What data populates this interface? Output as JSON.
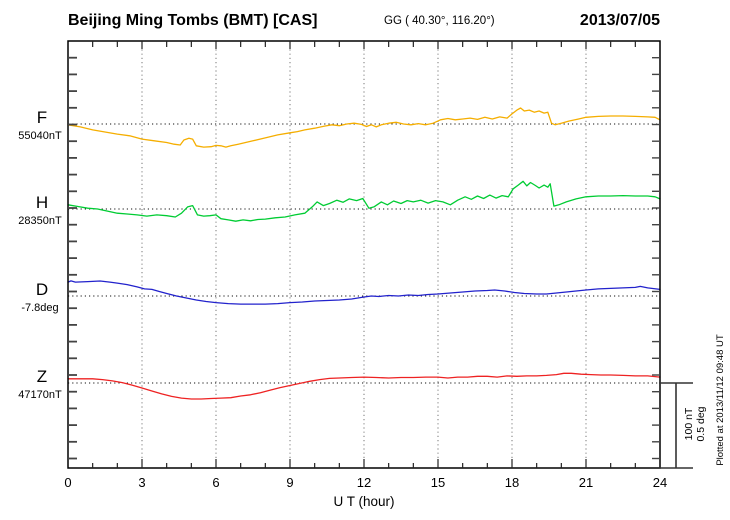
{
  "header": {
    "title": "Beijing Ming Tombs (BMT)  [CAS]",
    "geo": "GG ( 40.30°, 116.20°)",
    "date": "2013/07/05"
  },
  "side_note": {
    "text": "Plotted at 2013/11/12 09:48 UT"
  },
  "scale_bar": {
    "line1": "100 nT",
    "line2": "0.5 deg"
  },
  "chart_data": {
    "type": "line",
    "title": "Beijing Ming Tombs (BMT) magnetogram 2013/07/05",
    "x_label": "U T (hour)",
    "x_range": [
      0,
      24
    ],
    "x_ticks": [
      0,
      3,
      6,
      9,
      12,
      15,
      18,
      21,
      24
    ],
    "x_grid": [
      3,
      6,
      9,
      12,
      15,
      18,
      21
    ],
    "grid": "dotted",
    "scale_note": "scale bar = 100 nT for F/H/Z, 0.5 deg for D",
    "series": [
      {
        "name": "F",
        "value_label": "55040nT",
        "baseline_value": 55040,
        "unit": "nT",
        "color": "#F5AE00",
        "points": [
          [
            0,
            -1
          ],
          [
            0.5,
            -3.5
          ],
          [
            1,
            -7
          ],
          [
            1.5,
            -9.5
          ],
          [
            2,
            -12
          ],
          [
            2.5,
            -14
          ],
          [
            3,
            -18
          ],
          [
            3.5,
            -20
          ],
          [
            4,
            -22
          ],
          [
            4.3,
            -24
          ],
          [
            4.55,
            -25
          ],
          [
            4.7,
            -19
          ],
          [
            4.9,
            -17
          ],
          [
            5.05,
            -18
          ],
          [
            5.2,
            -26
          ],
          [
            5.5,
            -27.5
          ],
          [
            5.8,
            -27
          ],
          [
            6,
            -25.5
          ],
          [
            6.2,
            -26
          ],
          [
            6.4,
            -27.5
          ],
          [
            6.6,
            -26
          ],
          [
            6.9,
            -24
          ],
          [
            7.2,
            -22
          ],
          [
            7.5,
            -20
          ],
          [
            8,
            -16.5
          ],
          [
            8.5,
            -13
          ],
          [
            9,
            -10.5
          ],
          [
            9.3,
            -9
          ],
          [
            9.6,
            -7
          ],
          [
            10,
            -5
          ],
          [
            10.4,
            -2.5
          ],
          [
            10.7,
            -1
          ],
          [
            11,
            -2
          ],
          [
            11.3,
            0
          ],
          [
            11.6,
            1
          ],
          [
            11.9,
            -0.5
          ],
          [
            12.1,
            -3
          ],
          [
            12.3,
            -1
          ],
          [
            12.5,
            -3.5
          ],
          [
            12.7,
            -1
          ],
          [
            13,
            1
          ],
          [
            13.3,
            2
          ],
          [
            13.6,
            0
          ],
          [
            13.9,
            -1
          ],
          [
            14.2,
            0.5
          ],
          [
            14.5,
            -1
          ],
          [
            14.8,
            1
          ],
          [
            15.1,
            5
          ],
          [
            15.4,
            6.5
          ],
          [
            15.7,
            5
          ],
          [
            16,
            6
          ],
          [
            16.3,
            7
          ],
          [
            16.6,
            5.5
          ],
          [
            16.9,
            8
          ],
          [
            17.2,
            6
          ],
          [
            17.5,
            8.5
          ],
          [
            17.8,
            7
          ],
          [
            18,
            12
          ],
          [
            18.2,
            16.5
          ],
          [
            18.35,
            19
          ],
          [
            18.5,
            15.5
          ],
          [
            18.7,
            16.5
          ],
          [
            18.9,
            14
          ],
          [
            19.1,
            15.5
          ],
          [
            19.3,
            13
          ],
          [
            19.45,
            14
          ],
          [
            19.6,
            1
          ],
          [
            19.75,
            -1
          ],
          [
            20,
            1
          ],
          [
            20.3,
            3.5
          ],
          [
            20.7,
            6
          ],
          [
            21,
            8
          ],
          [
            21.5,
            9
          ],
          [
            22,
            9.5
          ],
          [
            22.5,
            9.5
          ],
          [
            23,
            9
          ],
          [
            23.5,
            8.5
          ],
          [
            23.8,
            8
          ],
          [
            24,
            5
          ]
        ]
      },
      {
        "name": "H",
        "value_label": "28350nT",
        "baseline_value": 28350,
        "unit": "nT",
        "color": "#00CC33",
        "points": [
          [
            0,
            5
          ],
          [
            0.4,
            3
          ],
          [
            0.8,
            1
          ],
          [
            1.2,
            0
          ],
          [
            1.6,
            -2.5
          ],
          [
            2,
            -5
          ],
          [
            2.4,
            -6
          ],
          [
            2.8,
            -7
          ],
          [
            3.2,
            -8.5
          ],
          [
            3.6,
            -7
          ],
          [
            4,
            -8
          ],
          [
            4.35,
            -9.5
          ],
          [
            4.6,
            -5
          ],
          [
            4.85,
            2.5
          ],
          [
            5.05,
            4
          ],
          [
            5.25,
            -7
          ],
          [
            5.5,
            -8.5
          ],
          [
            5.75,
            -8
          ],
          [
            6,
            -7
          ],
          [
            6.2,
            -11.5
          ],
          [
            6.5,
            -13
          ],
          [
            6.8,
            -14.5
          ],
          [
            7.1,
            -13
          ],
          [
            7.4,
            -14
          ],
          [
            7.7,
            -12.5
          ],
          [
            8,
            -12
          ],
          [
            8.4,
            -10.5
          ],
          [
            8.8,
            -9.5
          ],
          [
            9.2,
            -7
          ],
          [
            9.6,
            -5
          ],
          [
            9.9,
            2.5
          ],
          [
            10.1,
            8.5
          ],
          [
            10.35,
            4
          ],
          [
            10.6,
            6.5
          ],
          [
            10.9,
            10.5
          ],
          [
            11.15,
            8
          ],
          [
            11.4,
            12
          ],
          [
            11.7,
            10
          ],
          [
            11.95,
            12.5
          ],
          [
            12.2,
            1
          ],
          [
            12.4,
            2.5
          ],
          [
            12.7,
            8.5
          ],
          [
            12.95,
            5
          ],
          [
            13.2,
            9.5
          ],
          [
            13.5,
            6.5
          ],
          [
            13.75,
            10
          ],
          [
            14,
            8.5
          ],
          [
            14.3,
            10.5
          ],
          [
            14.6,
            7
          ],
          [
            14.9,
            10
          ],
          [
            15.2,
            8.5
          ],
          [
            15.5,
            5
          ],
          [
            15.8,
            10.5
          ],
          [
            16.1,
            14.5
          ],
          [
            16.35,
            11.5
          ],
          [
            16.6,
            15.5
          ],
          [
            16.85,
            12.5
          ],
          [
            17.1,
            16.5
          ],
          [
            17.35,
            13
          ],
          [
            17.6,
            16
          ],
          [
            17.85,
            14.5
          ],
          [
            18.05,
            24
          ],
          [
            18.25,
            28.5
          ],
          [
            18.45,
            33
          ],
          [
            18.6,
            27.5
          ],
          [
            18.75,
            31.5
          ],
          [
            18.95,
            28
          ],
          [
            19.1,
            25
          ],
          [
            19.3,
            28.5
          ],
          [
            19.45,
            26
          ],
          [
            19.55,
            30
          ],
          [
            19.7,
            3.5
          ],
          [
            19.9,
            5
          ],
          [
            20.2,
            8.5
          ],
          [
            20.6,
            12
          ],
          [
            21,
            14.5
          ],
          [
            21.5,
            15.5
          ],
          [
            22,
            15.5
          ],
          [
            22.5,
            16
          ],
          [
            23,
            15.5
          ],
          [
            23.5,
            15.5
          ],
          [
            23.8,
            14.5
          ],
          [
            24,
            12
          ]
        ]
      },
      {
        "name": "D",
        "value_label": "-7.8deg",
        "baseline_value": -7.8,
        "unit": "deg",
        "color": "#2222CC",
        "points": [
          [
            0,
            0.083
          ],
          [
            0.12,
            0.09
          ],
          [
            0.3,
            0.083
          ],
          [
            0.8,
            0.086
          ],
          [
            1.3,
            0.089
          ],
          [
            1.7,
            0.083
          ],
          [
            2,
            0.077
          ],
          [
            2.4,
            0.068
          ],
          [
            2.8,
            0.054
          ],
          [
            3.1,
            0.042
          ],
          [
            3.4,
            0.039
          ],
          [
            3.7,
            0.027
          ],
          [
            4,
            0.015
          ],
          [
            4.4,
            0
          ],
          [
            4.8,
            -0.012
          ],
          [
            5.2,
            -0.024
          ],
          [
            5.6,
            -0.033
          ],
          [
            6,
            -0.039
          ],
          [
            6.5,
            -0.045
          ],
          [
            7,
            -0.048
          ],
          [
            7.5,
            -0.048
          ],
          [
            8,
            -0.048
          ],
          [
            8.5,
            -0.045
          ],
          [
            9,
            -0.039
          ],
          [
            9.5,
            -0.036
          ],
          [
            10,
            -0.03
          ],
          [
            10.5,
            -0.027
          ],
          [
            11,
            -0.024
          ],
          [
            11.5,
            -0.018
          ],
          [
            12,
            -0.006
          ],
          [
            12.3,
            0
          ],
          [
            12.6,
            -0.003
          ],
          [
            13,
            0.003
          ],
          [
            13.4,
            0
          ],
          [
            13.8,
            0.006
          ],
          [
            14.2,
            0.003
          ],
          [
            14.6,
            0.009
          ],
          [
            15,
            0.012
          ],
          [
            15.5,
            0.018
          ],
          [
            16,
            0.024
          ],
          [
            16.5,
            0.03
          ],
          [
            17,
            0.033
          ],
          [
            17.3,
            0.036
          ],
          [
            17.7,
            0.03
          ],
          [
            18.1,
            0.021
          ],
          [
            18.5,
            0.015
          ],
          [
            19,
            0.012
          ],
          [
            19.4,
            0.012
          ],
          [
            19.8,
            0.018
          ],
          [
            20.2,
            0.024
          ],
          [
            20.6,
            0.03
          ],
          [
            21,
            0.036
          ],
          [
            21.5,
            0.042
          ],
          [
            22,
            0.045
          ],
          [
            22.5,
            0.048
          ],
          [
            23,
            0.051
          ],
          [
            23.2,
            0.057
          ],
          [
            23.5,
            0.048
          ],
          [
            24,
            0.039
          ]
        ]
      },
      {
        "name": "Z",
        "value_label": "47170nT",
        "baseline_value": 47170,
        "unit": "nT",
        "color": "#EE2222",
        "points": [
          [
            0,
            5
          ],
          [
            0.5,
            5
          ],
          [
            1,
            5
          ],
          [
            1.4,
            4
          ],
          [
            1.8,
            2.5
          ],
          [
            2.2,
            0.5
          ],
          [
            2.6,
            -2.5
          ],
          [
            3,
            -6
          ],
          [
            3.4,
            -9.5
          ],
          [
            3.8,
            -13
          ],
          [
            4.2,
            -16
          ],
          [
            4.6,
            -18
          ],
          [
            5,
            -19
          ],
          [
            5.4,
            -19
          ],
          [
            5.8,
            -18.5
          ],
          [
            6.2,
            -18
          ],
          [
            6.6,
            -17.5
          ],
          [
            7,
            -15.5
          ],
          [
            7.4,
            -14
          ],
          [
            7.8,
            -11.5
          ],
          [
            8.2,
            -8.5
          ],
          [
            8.6,
            -5.5
          ],
          [
            9,
            -3
          ],
          [
            9.4,
            -0.5
          ],
          [
            9.8,
            2
          ],
          [
            10.2,
            4
          ],
          [
            10.6,
            5.5
          ],
          [
            11,
            6
          ],
          [
            11.5,
            6.5
          ],
          [
            12,
            7
          ],
          [
            12.5,
            6.5
          ],
          [
            13,
            6
          ],
          [
            13.5,
            6.5
          ],
          [
            14,
            6.5
          ],
          [
            14.5,
            7
          ],
          [
            15,
            7
          ],
          [
            15.4,
            6
          ],
          [
            15.8,
            7
          ],
          [
            16.2,
            7
          ],
          [
            16.6,
            8
          ],
          [
            17,
            8
          ],
          [
            17.4,
            7
          ],
          [
            17.8,
            8.5
          ],
          [
            18.2,
            8
          ],
          [
            18.6,
            8.5
          ],
          [
            19,
            8.5
          ],
          [
            19.4,
            9
          ],
          [
            19.8,
            10
          ],
          [
            20.1,
            11.5
          ],
          [
            20.4,
            11.5
          ],
          [
            20.8,
            10.5
          ],
          [
            21.2,
            10
          ],
          [
            21.6,
            9.5
          ],
          [
            22,
            9.5
          ],
          [
            22.5,
            9
          ],
          [
            23,
            8.5
          ],
          [
            23.5,
            8.5
          ],
          [
            24,
            7
          ]
        ]
      }
    ]
  }
}
